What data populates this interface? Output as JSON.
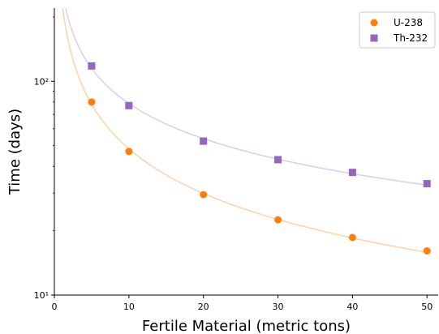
{
  "chart_data": {
    "type": "scatter",
    "xlabel": "Fertile Material (metric tons)",
    "ylabel": "Time (days)",
    "x_scale": "linear",
    "y_scale": "log",
    "xlim": [
      0,
      51.5
    ],
    "ylim": [
      10,
      220
    ],
    "x_ticks": [
      0,
      10,
      20,
      30,
      40,
      50
    ],
    "x_tick_labels": [
      "0",
      "10",
      "20",
      "30",
      "40",
      "50"
    ],
    "y_ticks": [
      10,
      100
    ],
    "y_tick_labels": [
      "10¹",
      "10²"
    ],
    "grid": false,
    "legend_position": "top-right",
    "series": [
      {
        "name": "U-238",
        "marker": "circle",
        "color": "#ff7f0e",
        "fit_color": "#ffd4ad",
        "x": [
          5,
          10,
          20,
          30,
          40,
          50
        ],
        "y": [
          80,
          47,
          29.5,
          22.5,
          18.6,
          16.1
        ]
      },
      {
        "name": "Th-232",
        "marker": "square",
        "color": "#9467bd",
        "fit_color": "#dcd0ea",
        "x": [
          5,
          10,
          20,
          30,
          40,
          50
        ],
        "y": [
          118,
          77,
          52.5,
          43,
          37.5,
          33.2
        ]
      }
    ]
  }
}
